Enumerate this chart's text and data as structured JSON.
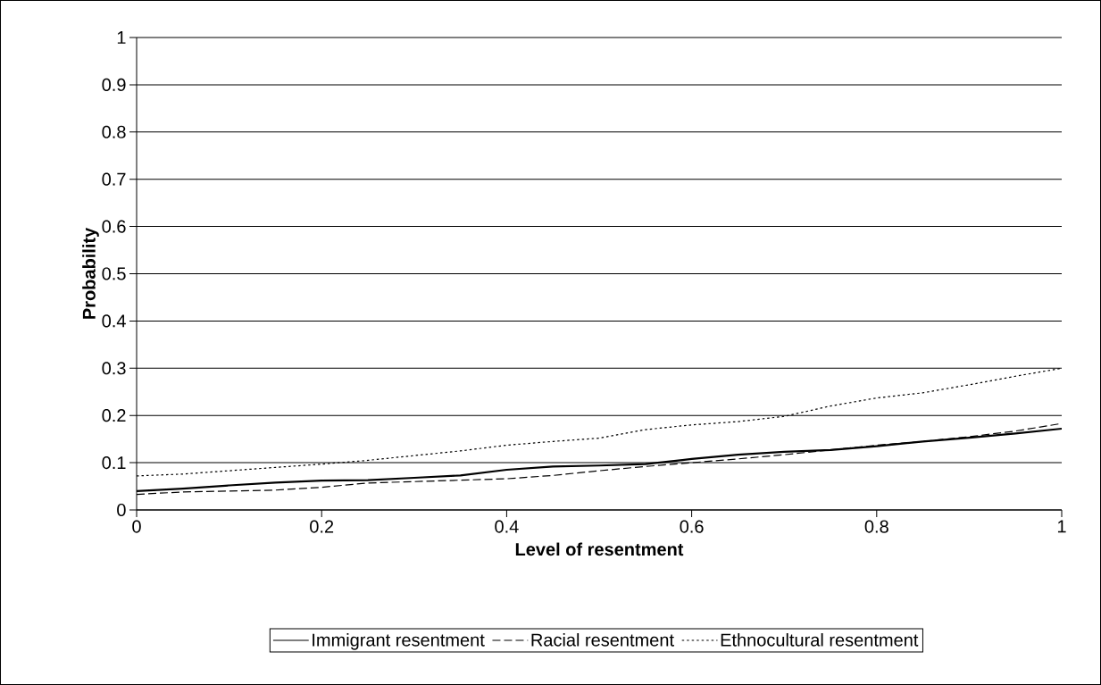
{
  "chart_data": {
    "type": "line",
    "xlabel": "Level of resentment",
    "ylabel": "Probability",
    "x": [
      0,
      0.05,
      0.1,
      0.15,
      0.2,
      0.25,
      0.3,
      0.35,
      0.4,
      0.45,
      0.5,
      0.55,
      0.6,
      0.65,
      0.7,
      0.75,
      0.8,
      0.85,
      0.9,
      0.95,
      1
    ],
    "series": [
      {
        "name": "Immigrant resentment",
        "color": "#000000",
        "line_style": "solid",
        "values": [
          0.04,
          0.045,
          0.052,
          0.058,
          0.062,
          0.063,
          0.068,
          0.073,
          0.085,
          0.092,
          0.094,
          0.097,
          0.108,
          0.117,
          0.123,
          0.127,
          0.135,
          0.145,
          0.153,
          0.162,
          0.172
        ]
      },
      {
        "name": "Racial resentment",
        "color": "#000000",
        "line_style": "dashed",
        "values": [
          0.033,
          0.038,
          0.04,
          0.042,
          0.048,
          0.057,
          0.06,
          0.063,
          0.066,
          0.073,
          0.083,
          0.092,
          0.1,
          0.108,
          0.117,
          0.127,
          0.137,
          0.145,
          0.155,
          0.167,
          0.183
        ]
      },
      {
        "name": "Ethnocultural resentment",
        "color": "#000000",
        "line_style": "dotted",
        "values": [
          0.072,
          0.076,
          0.083,
          0.09,
          0.097,
          0.105,
          0.115,
          0.125,
          0.137,
          0.145,
          0.152,
          0.17,
          0.18,
          0.187,
          0.198,
          0.22,
          0.237,
          0.248,
          0.265,
          0.283,
          0.3
        ]
      }
    ],
    "xlim": [
      0,
      1
    ],
    "xticks": [
      0,
      0.2,
      0.4,
      0.6,
      0.8,
      1
    ],
    "ylim": [
      0,
      1
    ],
    "yticks": [
      0,
      0.1,
      0.2,
      0.3,
      0.4,
      0.5,
      0.6,
      0.7,
      0.8,
      0.9,
      1
    ],
    "grid": "y",
    "legend": "bottom",
    "marker": "none"
  }
}
